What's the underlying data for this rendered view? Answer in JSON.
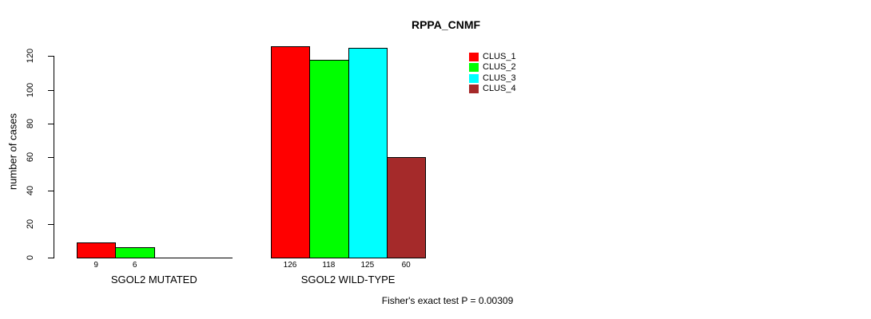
{
  "title": "RPPA_CNMF",
  "y_axis": {
    "label": "number of cases",
    "ticks": [
      0,
      20,
      40,
      60,
      80,
      100,
      120
    ]
  },
  "legend": {
    "items": [
      {
        "label": "CLUS_1",
        "color": "#FF0000"
      },
      {
        "label": "CLUS_2",
        "color": "#00FF00"
      },
      {
        "label": "CLUS_3",
        "color": "#00FFFF"
      },
      {
        "label": "CLUS_4",
        "color": "#A52A2A"
      }
    ]
  },
  "footer": "Fisher's exact test P = 0.00309",
  "chart_data": {
    "type": "bar",
    "title": "RPPA_CNMF",
    "categories": [
      "SGOL2 MUTATED",
      "SGOL2 WILD-TYPE"
    ],
    "series": [
      {
        "name": "CLUS_1",
        "color": "#FF0000",
        "values": [
          9,
          126
        ]
      },
      {
        "name": "CLUS_2",
        "color": "#00FF00",
        "values": [
          6,
          118
        ]
      },
      {
        "name": "CLUS_3",
        "color": "#00FFFF",
        "values": [
          0,
          125
        ]
      },
      {
        "name": "CLUS_4",
        "color": "#A52A2A",
        "values": [
          0,
          60
        ]
      }
    ],
    "bar_value_labels": [
      [
        "9",
        "6",
        null,
        null
      ],
      [
        "126",
        "118",
        "125",
        "60"
      ]
    ],
    "xlabel": "",
    "ylabel": "number of cases",
    "ylim": [
      0,
      130
    ],
    "yticks": [
      0,
      20,
      40,
      60,
      80,
      100,
      120
    ],
    "grid": false,
    "legend_position": "top-right",
    "annotation": "Fisher's exact test P = 0.00309"
  }
}
